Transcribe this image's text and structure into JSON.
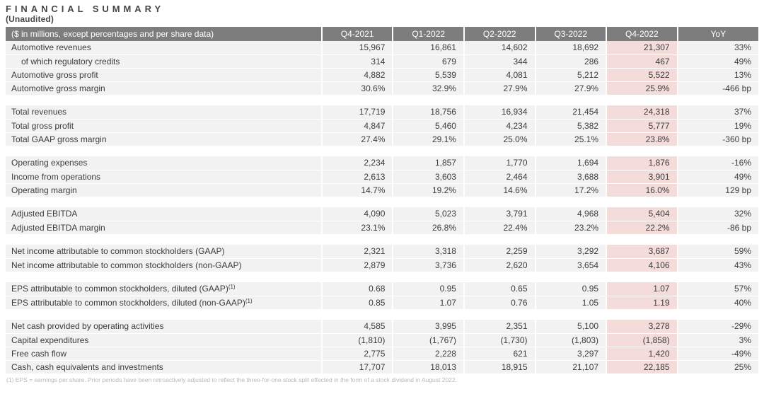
{
  "title": "FINANCIAL SUMMARY",
  "subtitle": "(Unaudited)",
  "colors": {
    "header_bg": "#7d7d7d",
    "header_text": "#ffffff",
    "row_bg": "#f2f2f2",
    "highlight_bg": "#f3dcda",
    "text": "#3c3c3c",
    "footnote": "#b9b9b9"
  },
  "table": {
    "header": [
      "($ in millions, except percentages and per share data)",
      "Q4-2021",
      "Q1-2022",
      "Q2-2022",
      "Q3-2022",
      "Q4-2022",
      "YoY"
    ],
    "highlight_column": "Q4-2022",
    "groups": [
      {
        "rows": [
          {
            "label": "Automotive revenues",
            "indent": false,
            "sup": "",
            "values": [
              "15,967",
              "16,861",
              "14,602",
              "18,692",
              "21,307",
              "33%"
            ]
          },
          {
            "label": "of which regulatory credits",
            "indent": true,
            "sup": "",
            "values": [
              "314",
              "679",
              "344",
              "286",
              "467",
              "49%"
            ]
          },
          {
            "label": "Automotive gross profit",
            "indent": false,
            "sup": "",
            "values": [
              "4,882",
              "5,539",
              "4,081",
              "5,212",
              "5,522",
              "13%"
            ]
          },
          {
            "label": "Automotive gross margin",
            "indent": false,
            "sup": "",
            "values": [
              "30.6%",
              "32.9%",
              "27.9%",
              "27.9%",
              "25.9%",
              "-466 bp"
            ]
          }
        ]
      },
      {
        "rows": [
          {
            "label": "Total revenues",
            "indent": false,
            "sup": "",
            "values": [
              "17,719",
              "18,756",
              "16,934",
              "21,454",
              "24,318",
              "37%"
            ]
          },
          {
            "label": "Total gross profit",
            "indent": false,
            "sup": "",
            "values": [
              "4,847",
              "5,460",
              "4,234",
              "5,382",
              "5,777",
              "19%"
            ]
          },
          {
            "label": "Total GAAP gross margin",
            "indent": false,
            "sup": "",
            "values": [
              "27.4%",
              "29.1%",
              "25.0%",
              "25.1%",
              "23.8%",
              "-360 bp"
            ]
          }
        ]
      },
      {
        "rows": [
          {
            "label": "Operating expenses",
            "indent": false,
            "sup": "",
            "values": [
              "2,234",
              "1,857",
              "1,770",
              "1,694",
              "1,876",
              "-16%"
            ]
          },
          {
            "label": "Income from operations",
            "indent": false,
            "sup": "",
            "values": [
              "2,613",
              "3,603",
              "2,464",
              "3,688",
              "3,901",
              "49%"
            ]
          },
          {
            "label": "Operating margin",
            "indent": false,
            "sup": "",
            "values": [
              "14.7%",
              "19.2%",
              "14.6%",
              "17.2%",
              "16.0%",
              "129 bp"
            ]
          }
        ]
      },
      {
        "rows": [
          {
            "label": "Adjusted EBITDA",
            "indent": false,
            "sup": "",
            "values": [
              "4,090",
              "5,023",
              "3,791",
              "4,968",
              "5,404",
              "32%"
            ]
          },
          {
            "label": "Adjusted EBITDA margin",
            "indent": false,
            "sup": "",
            "values": [
              "23.1%",
              "26.8%",
              "22.4%",
              "23.2%",
              "22.2%",
              "-86 bp"
            ]
          }
        ]
      },
      {
        "rows": [
          {
            "label": "Net income attributable to common stockholders (GAAP)",
            "indent": false,
            "sup": "",
            "values": [
              "2,321",
              "3,318",
              "2,259",
              "3,292",
              "3,687",
              "59%"
            ]
          },
          {
            "label": "Net income attributable to common stockholders (non-GAAP)",
            "indent": false,
            "sup": "",
            "values": [
              "2,879",
              "3,736",
              "2,620",
              "3,654",
              "4,106",
              "43%"
            ]
          }
        ]
      },
      {
        "rows": [
          {
            "label": "EPS attributable to common stockholders, diluted (GAAP)",
            "indent": false,
            "sup": "(1)",
            "values": [
              "0.68",
              "0.95",
              "0.65",
              "0.95",
              "1.07",
              "57%"
            ]
          },
          {
            "label": "EPS attributable to common stockholders, diluted (non-GAAP)",
            "indent": false,
            "sup": "(1)",
            "values": [
              "0.85",
              "1.07",
              "0.76",
              "1.05",
              "1.19",
              "40%"
            ]
          }
        ]
      },
      {
        "rows": [
          {
            "label": "Net cash provided by operating activities",
            "indent": false,
            "sup": "",
            "values": [
              "4,585",
              "3,995",
              "2,351",
              "5,100",
              "3,278",
              "-29%"
            ]
          },
          {
            "label": "Capital expenditures",
            "indent": false,
            "sup": "",
            "values": [
              "(1,810)",
              "(1,767)",
              "(1,730)",
              "(1,803)",
              "(1,858)",
              "3%"
            ]
          },
          {
            "label": "Free cash flow",
            "indent": false,
            "sup": "",
            "values": [
              "2,775",
              "2,228",
              "621",
              "3,297",
              "1,420",
              "-49%"
            ]
          },
          {
            "label": "Cash, cash equivalents and investments",
            "indent": false,
            "sup": "",
            "values": [
              "17,707",
              "18,013",
              "18,915",
              "21,107",
              "22,185",
              "25%"
            ]
          }
        ]
      }
    ]
  },
  "footnote": "(1) EPS = earnings per share. Prior periods have been retroactively adjusted to reflect the three-for-one stock split effected in the form of a stock dividend in August 2022."
}
